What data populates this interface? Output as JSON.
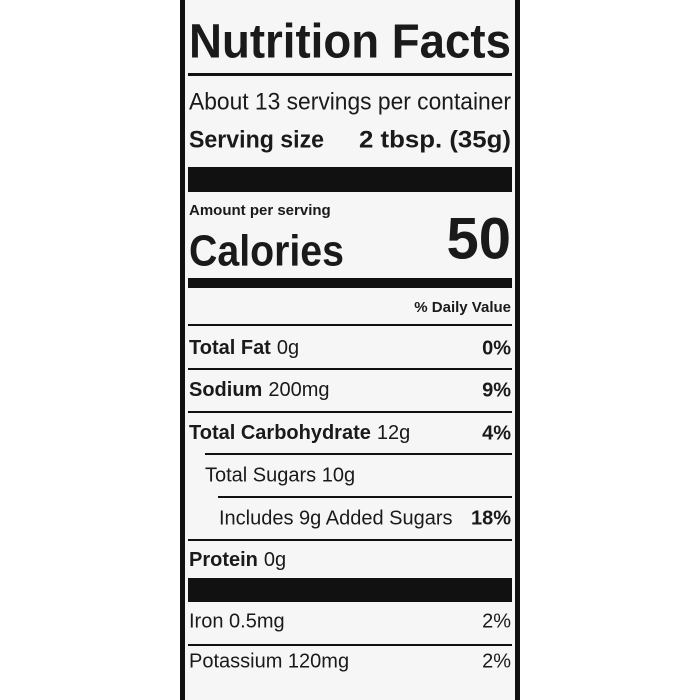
{
  "title": "Nutrition Facts",
  "servings": "About 13 servings per container",
  "serving_size": {
    "label": "Serving size",
    "value": "2 tbsp. (35g)"
  },
  "amount_per_serving": "Amount per serving",
  "calories": {
    "label": "Calories",
    "value": "50"
  },
  "daily_value_header": "% Daily Value",
  "rows": [
    {
      "name": "Total Fat",
      "amount": "0g",
      "daily_value": "0%"
    },
    {
      "name": "Sodium",
      "amount": "200mg",
      "daily_value": "9%"
    },
    {
      "name": "Total Carbohydrate",
      "amount": "12g",
      "daily_value": "4%"
    },
    {
      "text": "Total Sugars 10g"
    },
    {
      "text": "Includes 9g Added Sugars",
      "daily_value": "18%"
    },
    {
      "name": "Protein",
      "amount": "0g"
    },
    {
      "text": "Iron 0.5mg",
      "daily_value": "2%"
    },
    {
      "text": "Potassium 120mg",
      "daily_value": "2%"
    }
  ]
}
